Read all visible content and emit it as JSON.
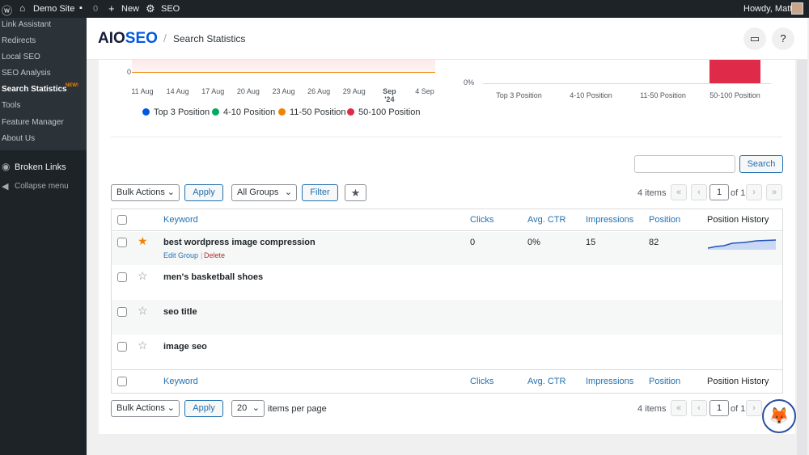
{
  "adminbar": {
    "site": "Demo Site",
    "comments": "0",
    "new": "New",
    "seo": "SEO",
    "greeting": "Howdy, Matt"
  },
  "sidebar": {
    "items": [
      "Link Assistant",
      "Redirects",
      "Local SEO",
      "SEO Analysis",
      "Search Statistics",
      "Tools",
      "Feature Manager",
      "About Us"
    ],
    "badge": "NEW!",
    "broken_links": "Broken Links",
    "collapse": "Collapse menu"
  },
  "header": {
    "logo_dark": "AIO",
    "logo_blue": "SEO",
    "sep": "/",
    "title": "Search Statistics"
  },
  "chart_data": [
    {
      "type": "line",
      "x_ticks": [
        "11 Aug",
        "14 Aug",
        "17 Aug",
        "20 Aug",
        "23 Aug",
        "26 Aug",
        "29 Aug",
        "Sep '24",
        "4 Sep"
      ],
      "y_ticks": [
        "0"
      ],
      "legend": [
        {
          "name": "Top 3 Position",
          "color": "#005ae0"
        },
        {
          "name": "4-10 Position",
          "color": "#00aa63"
        },
        {
          "name": "11-50 Position",
          "color": "#f18200"
        },
        {
          "name": "50-100 Position",
          "color": "#df2a4a"
        }
      ],
      "legend_position": "bottom"
    },
    {
      "type": "bar",
      "categories": [
        "Top 3 Position",
        "4-10 Position",
        "11-50 Position",
        "50-100 Position"
      ],
      "values": [
        0,
        0,
        0,
        100
      ],
      "y_ticks": [
        "0%"
      ],
      "colors": [
        "#005ae0",
        "#00aa63",
        "#f18200",
        "#df2a4a"
      ]
    }
  ],
  "toolbar": {
    "bulk": "Bulk Actions",
    "apply": "Apply",
    "groups": "All Groups",
    "filter": "Filter",
    "search_value": "",
    "search": "Search",
    "items": "4 items",
    "page": "1",
    "of": "of 1",
    "first": "«",
    "prev": "‹",
    "next": "›",
    "last": "»"
  },
  "table": {
    "headers": [
      "Keyword",
      "Clicks",
      "Avg. CTR",
      "Impressions",
      "Position",
      "Position History"
    ],
    "rows": [
      {
        "keyword": "best wordpress image compression",
        "starred": true,
        "clicks": "0",
        "ctr": "0%",
        "impressions": "15",
        "position": "82",
        "edit": "Edit Group",
        "sep": "|",
        "delete": "Delete"
      },
      {
        "keyword": "men's basketball shoes",
        "starred": false
      },
      {
        "keyword": "seo title",
        "starred": false
      },
      {
        "keyword": "image seo",
        "starred": false
      }
    ]
  },
  "footer": {
    "bulk": "Bulk Actions",
    "apply": "Apply",
    "per_page": "20",
    "per_page_label": "items per page",
    "items": "4 items",
    "page": "1",
    "of": "of 1",
    "first": "«",
    "prev": "‹",
    "next": "›"
  }
}
